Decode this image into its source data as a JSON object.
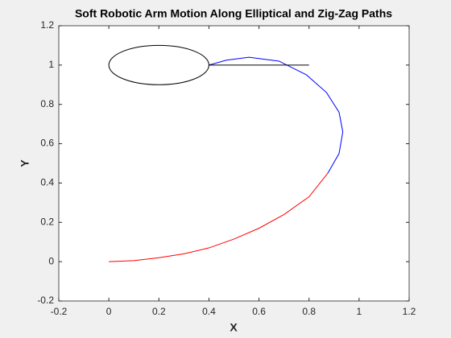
{
  "chart_data": {
    "type": "line",
    "title": "Soft Robotic Arm Motion Along Elliptical and Zig-Zag Paths",
    "x_label": "X",
    "y_label": "Y",
    "xlim": [
      -0.2,
      1.2
    ],
    "ylim": [
      -0.2,
      1.2
    ],
    "xticks": [
      -0.2,
      0,
      0.2,
      0.4,
      0.6,
      0.8,
      1,
      1.2
    ],
    "yticks": [
      -0.2,
      0,
      0.2,
      0.4,
      0.6,
      0.8,
      1,
      1.2
    ],
    "grid": false,
    "series": [
      {
        "color": "#ff0000",
        "x": [
          0,
          0.1,
          0.2,
          0.3,
          0.4,
          0.5,
          0.6,
          0.7,
          0.8,
          0.875
        ],
        "values": [
          0,
          0.005,
          0.02,
          0.04,
          0.07,
          0.115,
          0.17,
          0.24,
          0.33,
          0.45
        ]
      },
      {
        "color": "#0000ff",
        "x": [
          0.875,
          0.92,
          0.935,
          0.92,
          0.87,
          0.79,
          0.68,
          0.56,
          0.47,
          0.4
        ],
        "values": [
          0.45,
          0.55,
          0.66,
          0.76,
          0.86,
          0.95,
          1.02,
          1.04,
          1.025,
          1.0
        ]
      },
      {
        "color": "#000000",
        "x": [
          0.4,
          0.8
        ],
        "values": [
          1.0,
          1.0
        ]
      }
    ],
    "ellipses": [
      {
        "color": "#000000",
        "cx": 0.2,
        "cy": 1.0,
        "rx": 0.2,
        "ry": 0.1
      }
    ]
  }
}
